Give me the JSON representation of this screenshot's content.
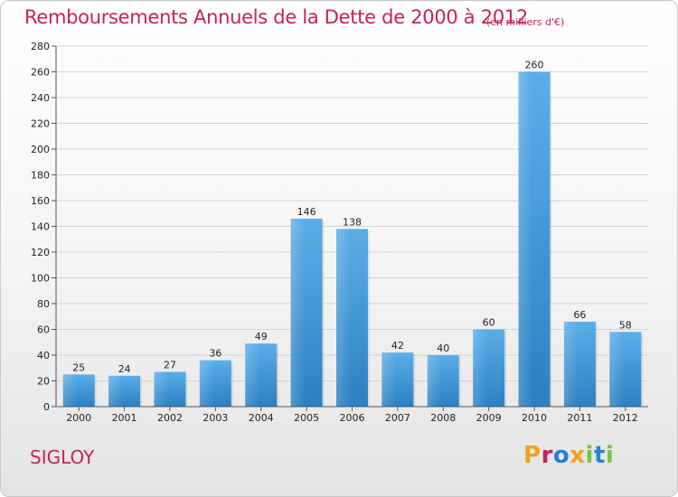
{
  "header": {
    "title": "Remboursements Annuels de la Dette de 2000 à 2012",
    "unit": "(en milliers d'€)"
  },
  "footer": {
    "commune": "SIGLOY",
    "brand": "Proxiti"
  },
  "colors": {
    "title": "#cc1f58",
    "bar_light": "#5caee8",
    "bar_dark": "#2f86c8",
    "grid": "#d2d2d2",
    "brand_letters": [
      "#f2a11f",
      "#cc1f58",
      "#2a7fd1",
      "#f2a11f",
      "#7ac143",
      "#2a7fd1",
      "#7ac143"
    ]
  },
  "chart_data": {
    "type": "bar",
    "title": "Remboursements Annuels de la Dette de 2000 à 2012",
    "subtitle": "(en milliers d'€)",
    "categories": [
      "2000",
      "2001",
      "2002",
      "2003",
      "2004",
      "2005",
      "2006",
      "2007",
      "2008",
      "2009",
      "2010",
      "2011",
      "2012"
    ],
    "values": [
      25,
      24,
      27,
      36,
      49,
      146,
      138,
      42,
      40,
      60,
      260,
      66,
      58
    ],
    "xlabel": "",
    "ylabel": "",
    "ylim": [
      0,
      280
    ],
    "yticks": [
      0,
      20,
      40,
      60,
      80,
      100,
      120,
      140,
      160,
      180,
      200,
      220,
      240,
      260,
      280
    ],
    "grid": true,
    "data_labels": true
  }
}
